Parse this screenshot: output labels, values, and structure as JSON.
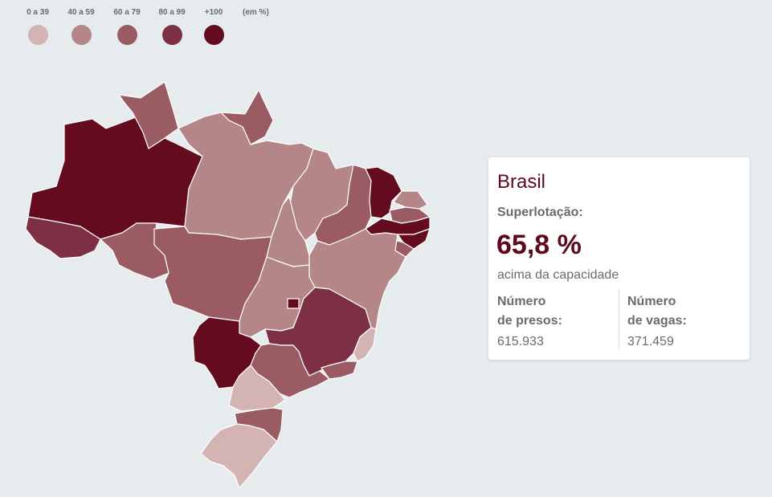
{
  "legend": {
    "items": [
      {
        "label": "0 a 39",
        "color": "#d4b3b3"
      },
      {
        "label": "40 a 59",
        "color": "#b48687"
      },
      {
        "label": "60 a 79",
        "color": "#9a5b63"
      },
      {
        "label": "80 a 99",
        "color": "#7d3043"
      },
      {
        "label": "+100",
        "color": "#650b1f"
      }
    ],
    "unit": "(em %)"
  },
  "map": {
    "states": [
      {
        "name": "amazonas",
        "category": "+100"
      },
      {
        "name": "acre",
        "category": "80 a 99"
      },
      {
        "name": "roraima",
        "category": "60 a 79"
      },
      {
        "name": "amapa",
        "category": "60 a 79"
      },
      {
        "name": "para",
        "category": "40 a 59"
      },
      {
        "name": "rondonia",
        "category": "60 a 79"
      },
      {
        "name": "mato-grosso",
        "category": "60 a 79"
      },
      {
        "name": "maranhao",
        "category": "40 a 59"
      },
      {
        "name": "tocantins",
        "category": "40 a 59"
      },
      {
        "name": "piaui",
        "category": "60 a 79"
      },
      {
        "name": "ceara",
        "category": "+100"
      },
      {
        "name": "rio-grande-do-norte",
        "category": "40 a 59"
      },
      {
        "name": "paraiba",
        "category": "60 a 79"
      },
      {
        "name": "pernambuco",
        "category": "+100"
      },
      {
        "name": "alagoas",
        "category": "+100"
      },
      {
        "name": "sergipe",
        "category": "60 a 79"
      },
      {
        "name": "bahia",
        "category": "40 a 59"
      },
      {
        "name": "goias",
        "category": "40 a 59"
      },
      {
        "name": "distrito-federal",
        "category": "+100"
      },
      {
        "name": "mato-grosso-do-sul",
        "category": "+100"
      },
      {
        "name": "minas-gerais",
        "category": "80 a 99"
      },
      {
        "name": "espirito-santo",
        "category": "0 a 39"
      },
      {
        "name": "rio-de-janeiro",
        "category": "60 a 79"
      },
      {
        "name": "sao-paulo",
        "category": "60 a 79"
      },
      {
        "name": "parana",
        "category": "0 a 39"
      },
      {
        "name": "santa-catarina",
        "category": "60 a 79"
      },
      {
        "name": "rio-grande-do-sul",
        "category": "0 a 39"
      }
    ]
  },
  "card": {
    "title": "Brasil",
    "subtitle": "Superlotação:",
    "value": "65,8 %",
    "caption": "acima da capacidade",
    "presos_label_1": "Número",
    "presos_label_2": "de presos:",
    "presos_value": "615.933",
    "vagas_label_1": "Número",
    "vagas_label_2": "de vagas:",
    "vagas_value": "371.459"
  }
}
